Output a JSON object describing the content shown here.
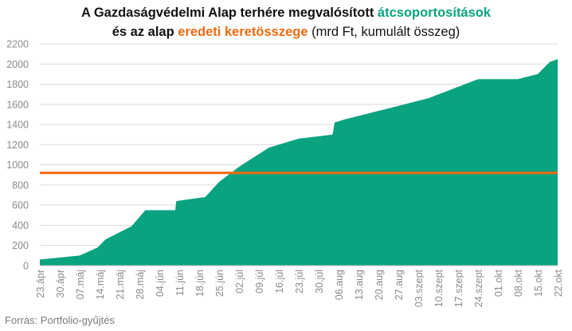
{
  "title": {
    "line1_prefix": "A Gazdaságvédelmi Alap terhére megvalósított ",
    "line1_highlight": "átcsoportosítások",
    "line2_prefix": "és az alap ",
    "line2_highlight": "eredeti keretösszege",
    "line2_suffix": " (mrd Ft, kumulált összeg)"
  },
  "source": "Forrás: Portfolio-gyűjtés",
  "colors": {
    "area": "#0aa37f",
    "line": "#f06a0f",
    "grid": "#d9d9d9"
  },
  "chart_data": {
    "type": "area",
    "ylim": [
      0,
      2200
    ],
    "yticks": [
      0,
      200,
      400,
      600,
      800,
      1000,
      1200,
      1400,
      1600,
      1800,
      2000,
      2200
    ],
    "categories": [
      "23.ápr",
      "30.ápr",
      "07.máj",
      "14.máj",
      "21.máj",
      "28.máj",
      "04.jún",
      "11.jún",
      "18.jún",
      "25.jún",
      "02.júl",
      "09.júl",
      "16.júl",
      "23.júl",
      "30.júl",
      "06.aug",
      "13.aug",
      "20.aug",
      "27.aug",
      "03.szept",
      "10.szept",
      "17.szept",
      "24.szept",
      "01.okt",
      "08.okt",
      "15.okt",
      "22.okt"
    ],
    "series": [
      {
        "type": "area",
        "points": [
          [
            0,
            60
          ],
          [
            1,
            80
          ],
          [
            2,
            100
          ],
          [
            2.9,
            180
          ],
          [
            3.3,
            260
          ],
          [
            4.6,
            390
          ],
          [
            5.3,
            550
          ],
          [
            6.8,
            550
          ],
          [
            6.85,
            640
          ],
          [
            8.3,
            680
          ],
          [
            9.0,
            830
          ],
          [
            10.0,
            980
          ],
          [
            11.5,
            1170
          ],
          [
            13.0,
            1260
          ],
          [
            14.7,
            1300
          ],
          [
            14.8,
            1420
          ],
          [
            15.3,
            1450
          ],
          [
            19.5,
            1660
          ],
          [
            22.0,
            1850
          ],
          [
            24.0,
            1850
          ],
          [
            25.0,
            1900
          ],
          [
            25.6,
            2020
          ],
          [
            26.0,
            2050
          ]
        ]
      },
      {
        "type": "line",
        "value": 920
      }
    ]
  }
}
